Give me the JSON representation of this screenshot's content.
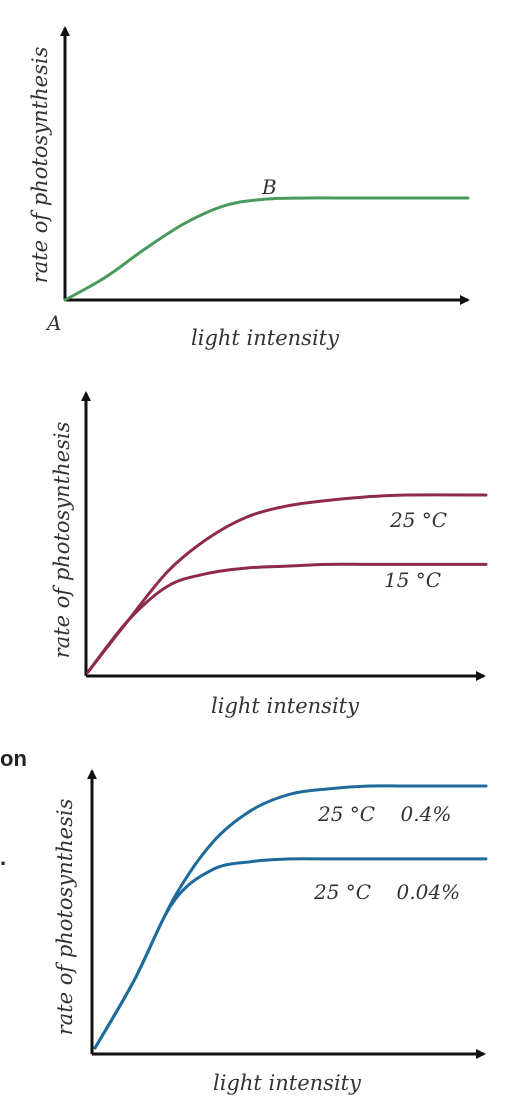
{
  "chart_data": [
    {
      "type": "line",
      "xlabel": "light intensity",
      "ylabel": "rate of photosynthesis",
      "point_labels": {
        "start": "A",
        "plateau": "B"
      },
      "series": [
        {
          "label_text": "",
          "color": "#4a9a5c",
          "x": [
            0,
            10,
            20,
            30,
            40,
            50,
            60,
            70,
            80,
            100
          ],
          "y": [
            0,
            22,
            50,
            75,
            92,
            98,
            99,
            99,
            99,
            99
          ]
        }
      ]
    },
    {
      "type": "line",
      "xlabel": "light intensity",
      "ylabel": "rate of photosynthesis",
      "series": [
        {
          "label_text": "25 °C",
          "color": "#8e2a4c",
          "x": [
            0,
            10,
            20,
            30,
            40,
            50,
            60,
            70,
            80,
            100
          ],
          "y": [
            0,
            28,
            55,
            73,
            85,
            91,
            94,
            96,
            97,
            97
          ]
        },
        {
          "label_text": "15 °C",
          "color": "#8e2a4c",
          "x": [
            0,
            10,
            20,
            30,
            40,
            50,
            60,
            70,
            80,
            100
          ],
          "y": [
            0,
            28,
            47,
            54,
            57,
            58,
            59,
            59,
            59,
            59
          ]
        }
      ]
    },
    {
      "type": "line",
      "xlabel": "light intensity",
      "ylabel": "rate of photosynthesis",
      "series": [
        {
          "label_text": "25 °C    0.4%",
          "color": "#1e6b9b",
          "x": [
            0,
            10,
            20,
            30,
            40,
            50,
            60,
            70,
            80,
            100
          ],
          "y": [
            0,
            25,
            55,
            76,
            88,
            94,
            96,
            97,
            97,
            97
          ]
        },
        {
          "label_text": "25 °C    0.04%",
          "color": "#1e6b9b",
          "x": [
            0,
            10,
            20,
            30,
            40,
            50,
            60,
            70,
            80,
            100
          ],
          "y": [
            0,
            25,
            54,
            66,
            69,
            70,
            70,
            70,
            70,
            70
          ]
        }
      ]
    }
  ],
  "page_fragments": {
    "left_word": "on",
    "left_mark": "."
  }
}
